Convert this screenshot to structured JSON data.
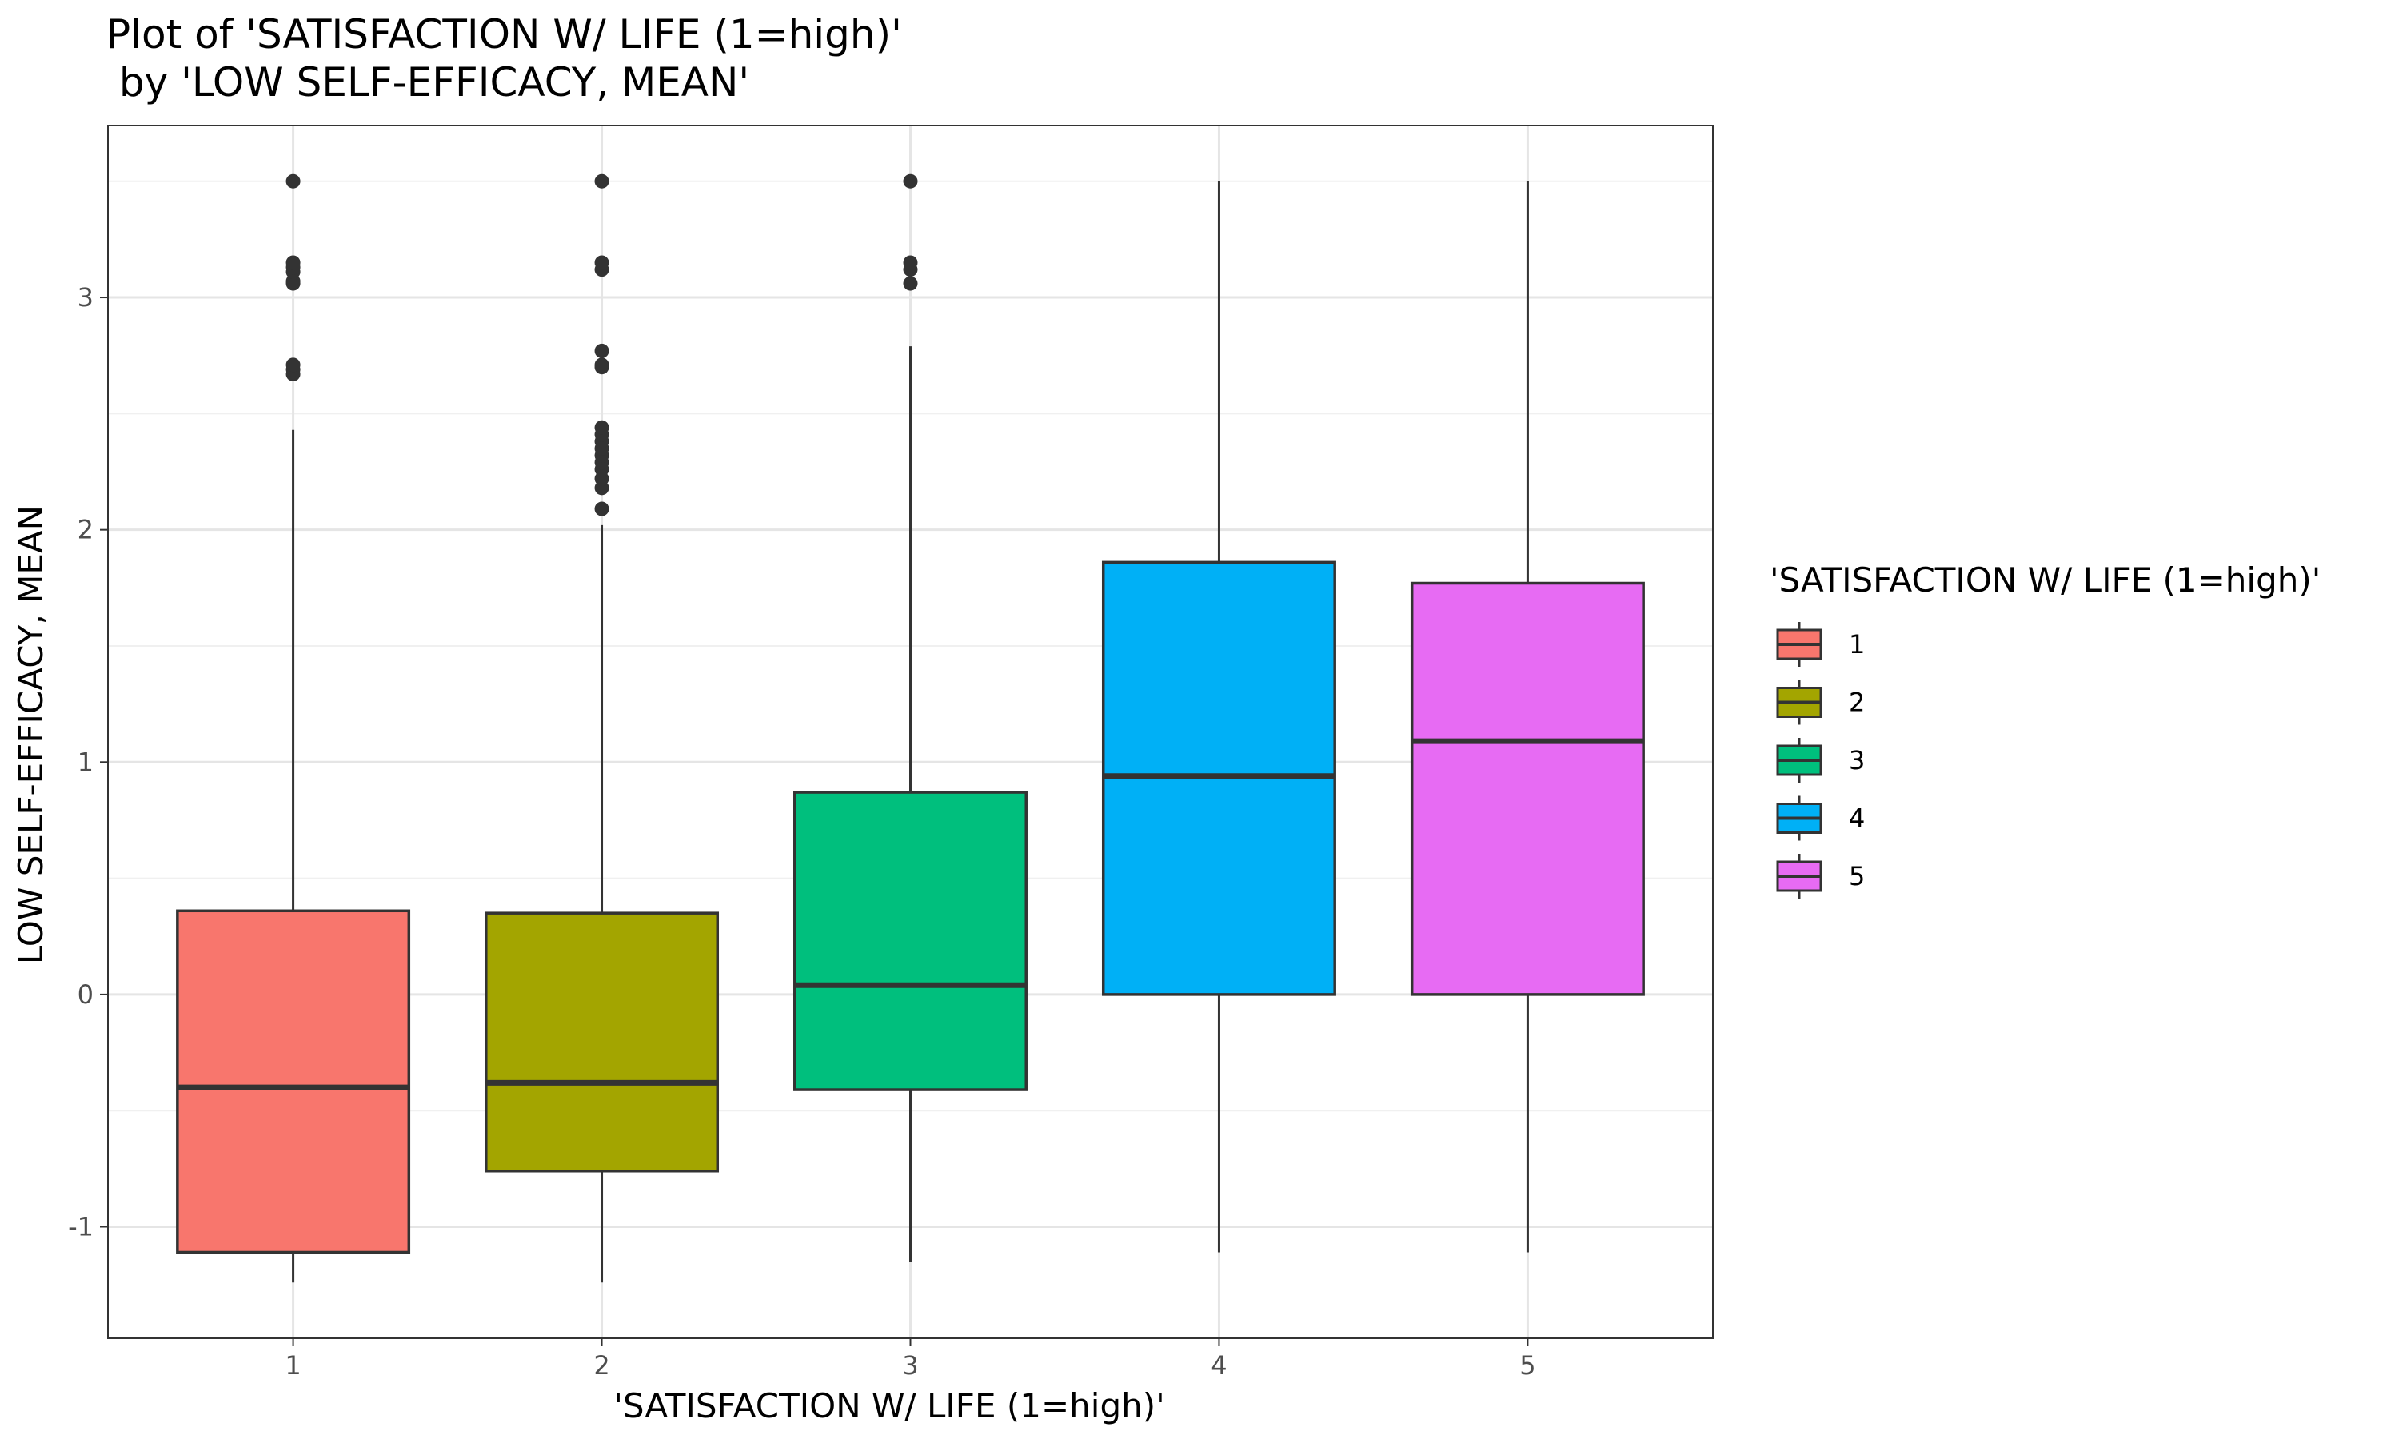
{
  "chart_data": {
    "type": "box",
    "title_lines": [
      "Plot of 'SATISFACTION W/ LIFE (1=high)'",
      " by 'LOW SELF-EFFICACY, MEAN'"
    ],
    "xlabel": "'SATISFACTION W/ LIFE (1=high)'",
    "ylabel": "LOW SELF-EFFICACY, MEAN",
    "ylim": [
      -1.48,
      3.74
    ],
    "y_ticks": [
      -1,
      0,
      1,
      2,
      3
    ],
    "categories": [
      "1",
      "2",
      "3",
      "4",
      "5"
    ],
    "legend": {
      "title": "'SATISFACTION W/ LIFE (1=high)'",
      "placement": "right",
      "entries": [
        "1",
        "2",
        "3",
        "4",
        "5"
      ]
    },
    "grid": true,
    "colors": [
      "#F8766D",
      "#A3A500",
      "#00BF7D",
      "#00B0F6",
      "#E76BF3"
    ],
    "series": [
      {
        "category": "1",
        "whisker_low": -1.24,
        "q1": -1.11,
        "median": -0.4,
        "q3": 0.36,
        "whisker_high": 2.43,
        "outliers": [
          2.67,
          2.69,
          2.71,
          3.06,
          3.07,
          3.11,
          3.13,
          3.15,
          3.5
        ]
      },
      {
        "category": "2",
        "whisker_low": -1.24,
        "q1": -0.76,
        "median": -0.38,
        "q3": 0.35,
        "whisker_high": 2.02,
        "outliers": [
          2.09,
          2.18,
          2.22,
          2.26,
          2.29,
          2.32,
          2.35,
          2.38,
          2.41,
          2.44,
          2.7,
          2.71,
          2.77,
          3.12,
          3.15,
          3.5
        ]
      },
      {
        "category": "3",
        "whisker_low": -1.15,
        "q1": -0.41,
        "median": 0.04,
        "q3": 0.87,
        "whisker_high": 2.79,
        "outliers": [
          3.06,
          3.12,
          3.15,
          3.5
        ]
      },
      {
        "category": "4",
        "whisker_low": -1.11,
        "q1": 0.0,
        "median": 0.94,
        "q3": 1.86,
        "whisker_high": 3.5,
        "outliers": []
      },
      {
        "category": "5",
        "whisker_low": -1.11,
        "q1": 0.0,
        "median": 1.09,
        "q3": 1.77,
        "whisker_high": 3.5,
        "outliers": []
      }
    ]
  }
}
